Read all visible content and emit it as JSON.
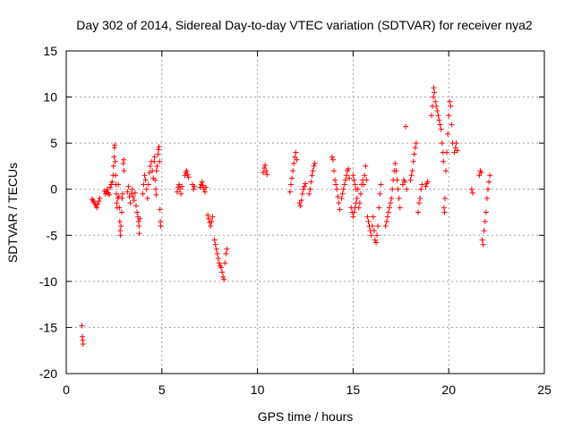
{
  "chart_data": {
    "type": "scatter",
    "title": "Day 302 of 2014, Sidereal Day-to-day VTEC variation (SDTVAR) for receiver nya2",
    "xlabel": "GPS time / hours",
    "ylabel": "SDTVAR / TECUs",
    "xlim": [
      0,
      25
    ],
    "ylim": [
      -20,
      15
    ],
    "xticks": [
      0,
      5,
      10,
      15,
      20,
      25
    ],
    "yticks": [
      -20,
      -15,
      -10,
      -5,
      0,
      5,
      10,
      15
    ],
    "xtick_labels": [
      "0",
      "5",
      "10",
      "15",
      "20",
      "25"
    ],
    "ytick_labels": [
      "-20",
      "-15",
      "-10",
      "-5",
      "0",
      "5",
      "10",
      "15"
    ],
    "grid": true,
    "marker": "+",
    "color": "#ff0000",
    "series": [
      {
        "name": "SDTVAR",
        "points": [
          [
            0.82,
            -14.8
          ],
          [
            0.84,
            -16.0
          ],
          [
            0.86,
            -16.4
          ],
          [
            0.88,
            -16.8
          ],
          [
            1.35,
            -1.1
          ],
          [
            1.4,
            -1.2
          ],
          [
            1.45,
            -1.4
          ],
          [
            1.5,
            -1.6
          ],
          [
            1.55,
            -1.8
          ],
          [
            1.6,
            -2.0
          ],
          [
            1.65,
            -1.6
          ],
          [
            1.7,
            -1.3
          ],
          [
            1.75,
            -1.0
          ],
          [
            2.0,
            -0.2
          ],
          [
            2.05,
            -0.5
          ],
          [
            2.1,
            -0.3
          ],
          [
            2.15,
            0.0
          ],
          [
            2.2,
            -0.4
          ],
          [
            2.25,
            -0.6
          ],
          [
            2.3,
            0.2
          ],
          [
            2.35,
            0.5
          ],
          [
            2.4,
            0.8
          ],
          [
            2.45,
            1.5
          ],
          [
            2.47,
            2.5
          ],
          [
            2.5,
            3.5
          ],
          [
            2.52,
            4.5
          ],
          [
            2.54,
            4.8
          ],
          [
            2.56,
            3.0
          ],
          [
            2.58,
            1.5
          ],
          [
            2.6,
            0.5
          ],
          [
            2.62,
            -0.5
          ],
          [
            2.64,
            -1.5
          ],
          [
            2.66,
            -2.0
          ],
          [
            2.7,
            -1.0
          ],
          [
            2.72,
            0.5
          ],
          [
            2.75,
            -0.8
          ],
          [
            2.78,
            -2.0
          ],
          [
            2.8,
            -3.5
          ],
          [
            2.82,
            -4.5
          ],
          [
            2.84,
            -5.0
          ],
          [
            2.86,
            -4.0
          ],
          [
            2.9,
            -2.5
          ],
          [
            2.92,
            -1.0
          ],
          [
            2.95,
            -0.5
          ],
          [
            2.98,
            2.8
          ],
          [
            3.0,
            3.2
          ],
          [
            3.02,
            2.0
          ],
          [
            3.2,
            -0.3
          ],
          [
            3.25,
            0.3
          ],
          [
            3.3,
            -0.8
          ],
          [
            3.35,
            -1.5
          ],
          [
            3.4,
            -0.5
          ],
          [
            3.45,
            0.0
          ],
          [
            3.5,
            -0.8
          ],
          [
            3.55,
            -1.2
          ],
          [
            3.6,
            -0.4
          ],
          [
            3.65,
            -1.8
          ],
          [
            3.7,
            -2.5
          ],
          [
            3.75,
            -3.0
          ],
          [
            3.78,
            -3.5
          ],
          [
            3.8,
            -4.0
          ],
          [
            3.82,
            -4.8
          ],
          [
            3.85,
            -3.2
          ],
          [
            4.0,
            -0.5
          ],
          [
            4.05,
            0.5
          ],
          [
            4.1,
            1.5
          ],
          [
            4.15,
            1.0
          ],
          [
            4.2,
            0.0
          ],
          [
            4.25,
            -1.0
          ],
          [
            4.3,
            0.5
          ],
          [
            4.35,
            1.8
          ],
          [
            4.4,
            2.5
          ],
          [
            4.45,
            3.0
          ],
          [
            4.5,
            2.0
          ],
          [
            4.55,
            1.2
          ],
          [
            4.6,
            3.0
          ],
          [
            4.62,
            3.5
          ],
          [
            4.65,
            1.0
          ],
          [
            4.68,
            0.0
          ],
          [
            4.7,
            -0.6
          ],
          [
            4.72,
            2.0
          ],
          [
            4.75,
            2.5
          ],
          [
            4.8,
            3.8
          ],
          [
            4.82,
            4.3
          ],
          [
            4.85,
            4.6
          ],
          [
            4.88,
            3.0
          ],
          [
            4.9,
            -2.2
          ],
          [
            4.92,
            -3.5
          ],
          [
            4.94,
            -4.0
          ],
          [
            5.8,
            -0.3
          ],
          [
            5.85,
            0.2
          ],
          [
            5.9,
            0.5
          ],
          [
            5.95,
            0.0
          ],
          [
            6.0,
            -0.5
          ],
          [
            6.05,
            0.3
          ],
          [
            6.2,
            1.5
          ],
          [
            6.25,
            1.8
          ],
          [
            6.3,
            2.0
          ],
          [
            6.35,
            1.6
          ],
          [
            6.4,
            1.3
          ],
          [
            6.6,
            0.5
          ],
          [
            6.65,
            0.0
          ],
          [
            6.7,
            0.3
          ],
          [
            7.0,
            0.2
          ],
          [
            7.05,
            0.5
          ],
          [
            7.1,
            0.8
          ],
          [
            7.15,
            0.4
          ],
          [
            7.2,
            0.0
          ],
          [
            7.25,
            -0.3
          ],
          [
            7.3,
            0.2
          ],
          [
            7.4,
            -2.8
          ],
          [
            7.45,
            -3.2
          ],
          [
            7.5,
            -3.6
          ],
          [
            7.55,
            -4.0
          ],
          [
            7.6,
            -3.5
          ],
          [
            7.65,
            -3.0
          ],
          [
            7.75,
            -5.5
          ],
          [
            7.8,
            -6.0
          ],
          [
            7.85,
            -6.5
          ],
          [
            7.9,
            -7.0
          ],
          [
            7.95,
            -7.5
          ],
          [
            8.0,
            -8.0
          ],
          [
            8.05,
            -8.3
          ],
          [
            8.1,
            -8.5
          ],
          [
            8.15,
            -9.0
          ],
          [
            8.2,
            -9.5
          ],
          [
            8.25,
            -9.8
          ],
          [
            8.3,
            -8.0
          ],
          [
            8.35,
            -7.0
          ],
          [
            8.4,
            -6.5
          ],
          [
            10.3,
            1.8
          ],
          [
            10.35,
            2.3
          ],
          [
            10.4,
            2.6
          ],
          [
            10.45,
            2.0
          ],
          [
            10.5,
            1.6
          ],
          [
            11.7,
            -0.3
          ],
          [
            11.75,
            0.5
          ],
          [
            11.8,
            1.2
          ],
          [
            11.85,
            2.0
          ],
          [
            11.9,
            2.8
          ],
          [
            11.95,
            3.5
          ],
          [
            12.0,
            4.0
          ],
          [
            12.05,
            3.2
          ],
          [
            12.2,
            -1.5
          ],
          [
            12.25,
            -1.8
          ],
          [
            12.3,
            -1.2
          ],
          [
            12.35,
            -0.5
          ],
          [
            12.4,
            0.0
          ],
          [
            12.45,
            0.3
          ],
          [
            12.5,
            0.6
          ],
          [
            12.7,
            -0.5
          ],
          [
            12.75,
            0.0
          ],
          [
            12.8,
            0.8
          ],
          [
            12.85,
            1.5
          ],
          [
            12.9,
            2.0
          ],
          [
            12.95,
            2.5
          ],
          [
            13.0,
            2.8
          ],
          [
            13.9,
            3.5
          ],
          [
            13.95,
            3.2
          ],
          [
            14.0,
            2.0
          ],
          [
            14.05,
            1.0
          ],
          [
            14.1,
            0.5
          ],
          [
            14.15,
            0.0
          ],
          [
            14.2,
            -0.8
          ],
          [
            14.25,
            -1.5
          ],
          [
            14.3,
            -2.2
          ],
          [
            14.4,
            -1.0
          ],
          [
            14.45,
            -0.5
          ],
          [
            14.5,
            0.0
          ],
          [
            14.55,
            0.5
          ],
          [
            14.6,
            1.0
          ],
          [
            14.65,
            1.5
          ],
          [
            14.7,
            2.0
          ],
          [
            14.75,
            2.2
          ],
          [
            14.8,
            1.2
          ],
          [
            14.9,
            -2.0
          ],
          [
            14.95,
            -2.5
          ],
          [
            15.0,
            -3.0
          ],
          [
            15.05,
            -2.5
          ],
          [
            15.1,
            -2.0
          ],
          [
            15.15,
            -1.5
          ],
          [
            15.2,
            -1.0
          ],
          [
            15.25,
            0.0
          ],
          [
            15.0,
            1.5
          ],
          [
            15.05,
            1.0
          ],
          [
            15.1,
            0.5
          ],
          [
            15.15,
            0.0
          ],
          [
            15.3,
            -2.0
          ],
          [
            15.35,
            -1.5
          ],
          [
            15.4,
            -0.5
          ],
          [
            15.45,
            0.5
          ],
          [
            15.5,
            1.0
          ],
          [
            15.55,
            0.5
          ],
          [
            15.6,
            1.5
          ],
          [
            15.65,
            2.5
          ],
          [
            15.7,
            1.0
          ],
          [
            15.75,
            -3.0
          ],
          [
            15.8,
            -3.5
          ],
          [
            15.85,
            -4.0
          ],
          [
            15.9,
            -4.5
          ],
          [
            15.95,
            -5.0
          ],
          [
            16.0,
            -4.0
          ],
          [
            16.05,
            -3.0
          ],
          [
            16.1,
            -4.5
          ],
          [
            16.15,
            -5.5
          ],
          [
            16.2,
            -5.8
          ],
          [
            16.25,
            -5.0
          ],
          [
            16.3,
            -4.0
          ],
          [
            16.35,
            -2.0
          ],
          [
            16.4,
            -0.5
          ],
          [
            16.45,
            0.5
          ],
          [
            16.7,
            -4.0
          ],
          [
            16.75,
            -3.5
          ],
          [
            16.8,
            -3.0
          ],
          [
            16.85,
            -2.5
          ],
          [
            16.9,
            -2.0
          ],
          [
            16.95,
            -1.5
          ],
          [
            17.0,
            -1.0
          ],
          [
            17.05,
            0.0
          ],
          [
            17.1,
            1.0
          ],
          [
            17.15,
            2.0
          ],
          [
            17.2,
            2.8
          ],
          [
            17.25,
            2.0
          ],
          [
            17.3,
            1.0
          ],
          [
            17.35,
            0.0
          ],
          [
            17.4,
            -1.0
          ],
          [
            17.45,
            -2.0
          ],
          [
            17.6,
            0.5
          ],
          [
            17.65,
            1.0
          ],
          [
            17.7,
            0.8
          ],
          [
            17.75,
            6.8
          ],
          [
            17.8,
            0.0
          ],
          [
            18.0,
            1.0
          ],
          [
            18.05,
            1.5
          ],
          [
            18.1,
            2.0
          ],
          [
            18.15,
            3.0
          ],
          [
            18.2,
            3.8
          ],
          [
            18.25,
            4.5
          ],
          [
            18.3,
            5.0
          ],
          [
            18.4,
            -2.5
          ],
          [
            18.45,
            -1.5
          ],
          [
            18.5,
            -1.0
          ],
          [
            18.55,
            0.0
          ],
          [
            18.6,
            0.5
          ],
          [
            18.8,
            0.3
          ],
          [
            18.85,
            0.6
          ],
          [
            18.9,
            0.8
          ],
          [
            19.1,
            8.0
          ],
          [
            19.15,
            9.0
          ],
          [
            19.2,
            10.0
          ],
          [
            19.22,
            11.0
          ],
          [
            19.25,
            10.5
          ],
          [
            19.3,
            9.5
          ],
          [
            19.35,
            9.0
          ],
          [
            19.4,
            8.5
          ],
          [
            19.45,
            8.0
          ],
          [
            19.5,
            7.5
          ],
          [
            19.55,
            7.0
          ],
          [
            19.6,
            6.5
          ],
          [
            19.65,
            5.0
          ],
          [
            19.7,
            4.0
          ],
          [
            19.72,
            3.0
          ],
          [
            19.75,
            -2.0
          ],
          [
            19.78,
            -2.5
          ],
          [
            19.8,
            -1.0
          ],
          [
            19.85,
            2.0
          ],
          [
            19.9,
            4.0
          ],
          [
            19.95,
            6.0
          ],
          [
            20.0,
            8.0
          ],
          [
            20.05,
            9.5
          ],
          [
            20.1,
            9.0
          ],
          [
            20.15,
            7.0
          ],
          [
            20.2,
            5.0
          ],
          [
            20.3,
            4.0
          ],
          [
            20.35,
            4.5
          ],
          [
            20.4,
            5.0
          ],
          [
            20.45,
            4.2
          ],
          [
            21.2,
            0.0
          ],
          [
            21.25,
            -0.4
          ],
          [
            21.6,
            1.5
          ],
          [
            21.65,
            2.0
          ],
          [
            21.7,
            1.8
          ],
          [
            21.75,
            -5.5
          ],
          [
            21.8,
            -6.0
          ],
          [
            21.85,
            -4.5
          ],
          [
            21.9,
            -3.5
          ],
          [
            21.95,
            -2.5
          ],
          [
            22.0,
            -1.0
          ],
          [
            22.05,
            0.0
          ],
          [
            22.1,
            0.8
          ],
          [
            22.15,
            1.5
          ]
        ]
      }
    ]
  }
}
